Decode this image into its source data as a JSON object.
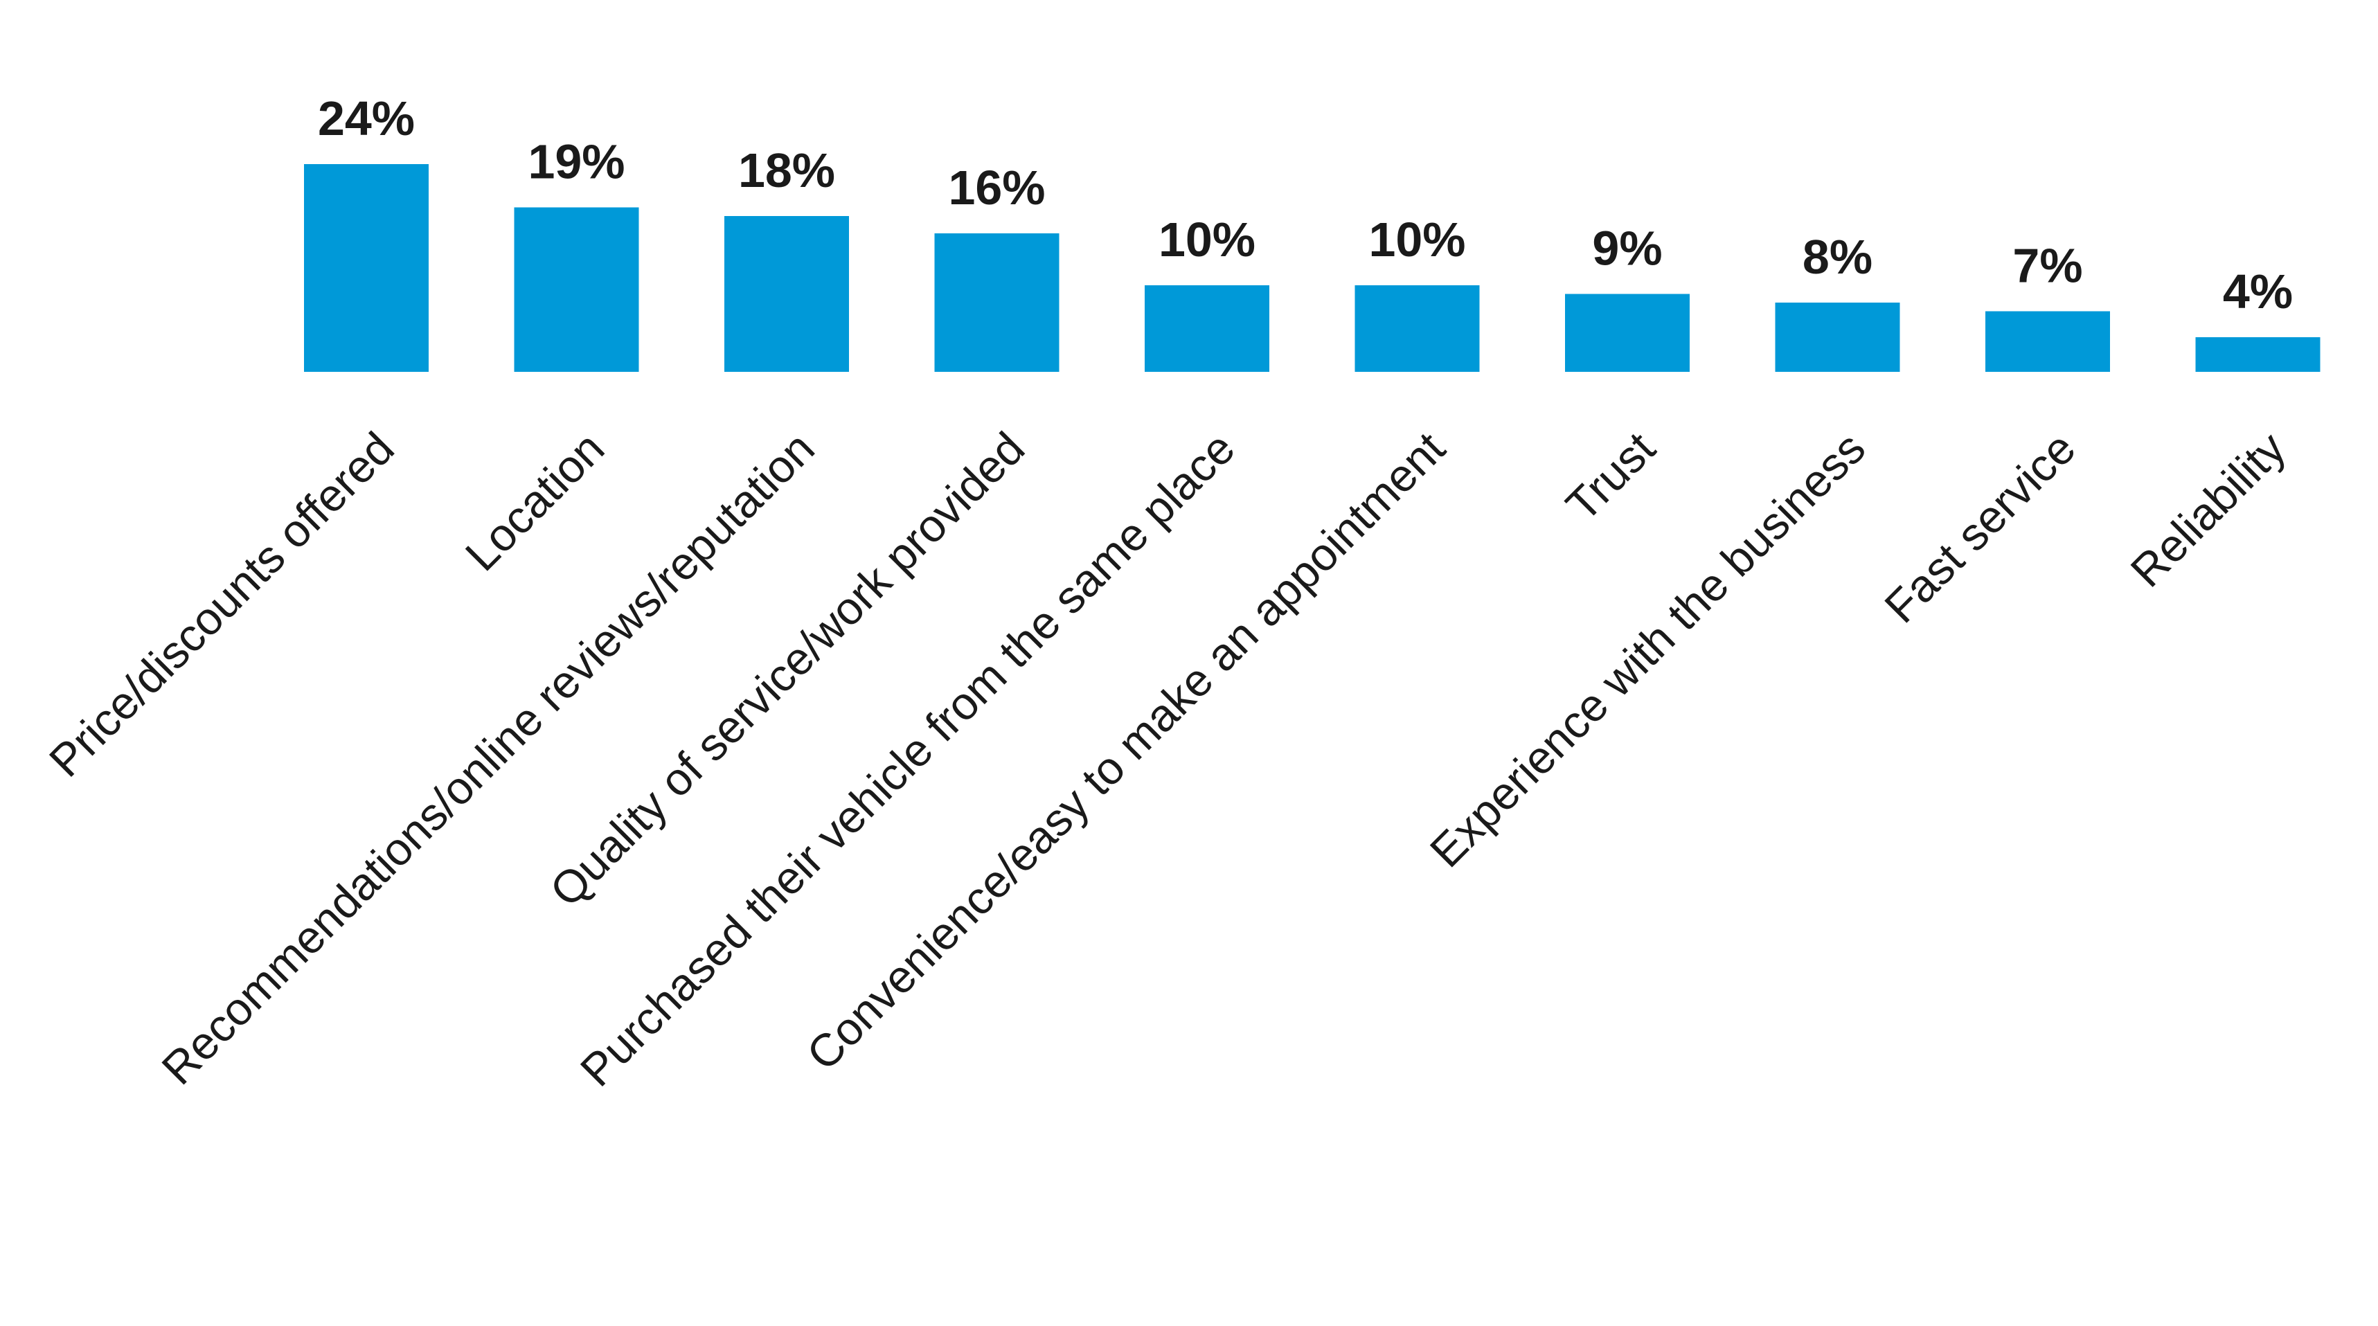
{
  "chart_data": {
    "type": "bar",
    "title": "",
    "xlabel": "",
    "ylabel": "",
    "categories": [
      "Price/discounts offered",
      "Location",
      "Recommendations/online reviews/reputation",
      "Quality of service/work provided",
      "Purchased their vehicle from the same place",
      "Convenience/easy to make an appointment",
      "Trust",
      "Experience with the business",
      "Fast service",
      "Reliability"
    ],
    "values": [
      24,
      19,
      18,
      16,
      10,
      10,
      9,
      8,
      7,
      4
    ],
    "value_labels": [
      "24%",
      "19%",
      "18%",
      "16%",
      "10%",
      "10%",
      "9%",
      "8%",
      "7%",
      "4%"
    ],
    "value_unit": "%",
    "ylim": [
      0,
      24
    ],
    "grid": false,
    "legend": "none",
    "bar_color": "#0099d8"
  }
}
